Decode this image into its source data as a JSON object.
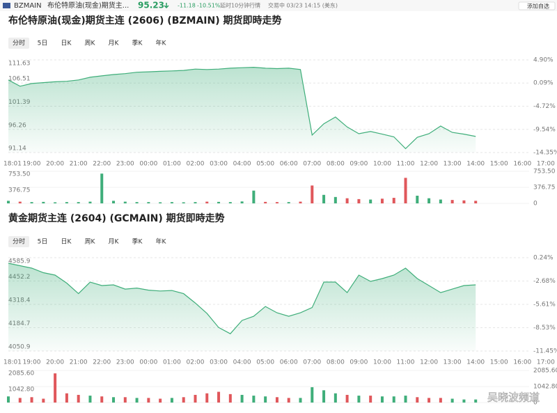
{
  "header": {
    "ticker": "BZMAIN",
    "name": "布伦特原油(现金)期货主...",
    "price": "95.23",
    "change": "-11.18",
    "change_pct": "-10.51%",
    "delay": "延时10分钟行情",
    "status": "交易中 03/23 14:15 (美东)",
    "button": "添加自选",
    "watermark": "吴晓波频道"
  },
  "chart_data": [
    {
      "type": "line",
      "title": "布伦特原油(现金)期货主连 (2606) (BZMAIN) 期货即時走势",
      "tabs": [
        "分时",
        "5日",
        "日K",
        "周K",
        "月K",
        "季K",
        "年K"
      ],
      "categories": [
        "18:01",
        null,
        "19:00",
        null,
        "20:00",
        null,
        "21:00",
        null,
        "22:00",
        null,
        "23:00",
        null,
        "00:00",
        null,
        "01:00",
        null,
        "02:00",
        null,
        "03:00",
        null,
        "04:00",
        null,
        "05:00",
        null,
        "06:00",
        null,
        "07:00",
        null,
        "08:00",
        null,
        "09:00",
        null,
        "10:00",
        null,
        "11:00",
        null,
        "12:00",
        null,
        "13:00",
        null,
        "14:00",
        null,
        "15:00",
        null,
        "16:00",
        null,
        "17:00"
      ],
      "values": [
        107.2,
        105.8,
        106.4,
        106.6,
        106.8,
        106.9,
        107.2,
        107.8,
        108.1,
        108.4,
        108.6,
        108.9,
        109.0,
        109.1,
        109.2,
        109.3,
        109.6,
        109.5,
        109.6,
        109.8,
        109.9,
        110.0,
        109.8,
        109.7,
        109.8,
        109.5,
        95.0,
        97.5,
        99.0,
        96.8,
        95.3,
        95.8,
        95.2,
        94.6,
        92.0,
        94.5,
        95.3,
        97.0,
        95.6,
        95.2,
        94.7,
        null,
        null,
        null,
        null,
        null,
        null
      ],
      "color": "#3fae7a",
      "ylim": [
        91.14,
        111.63
      ],
      "yticks": [
        91.14,
        96.26,
        101.39,
        106.51,
        111.63
      ],
      "y2lim": [
        -14.35,
        4.9
      ],
      "y2ticks": [
        {
          "value": -14.35,
          "label": "-14.35%"
        },
        {
          "value": -9.54,
          "label": "-9.54%"
        },
        {
          "value": -4.72,
          "label": "-4.72%"
        },
        {
          "value": 0.09,
          "label": "0.09%"
        },
        {
          "value": 4.9,
          "label": "4.90%"
        }
      ],
      "volume": {
        "values": [
          60,
          40,
          30,
          35,
          25,
          30,
          30,
          40,
          700,
          60,
          40,
          30,
          30,
          25,
          30,
          25,
          30,
          40,
          35,
          30,
          45,
          300,
          35,
          30,
          30,
          40,
          420,
          200,
          150,
          120,
          100,
          90,
          110,
          130,
          600,
          180,
          120,
          90,
          80,
          70,
          60,
          null,
          null,
          null,
          null,
          null,
          null
        ],
        "ylim": [
          0,
          753.5
        ],
        "yticks": [
          0,
          376.75,
          {
            "value": 753.5,
            "label": "753.50"
          }
        ],
        "up_color": "#3fae7a",
        "down_color": "#e0575b"
      }
    },
    {
      "type": "line",
      "title": "黄金期货主连 (2604) (GCMAIN) 期货即時走势",
      "tabs": [
        "分时",
        "5日",
        "日K",
        "周K",
        "月K",
        "季K",
        "年K"
      ],
      "categories": [
        "18:01",
        null,
        "19:00",
        null,
        "20:00",
        null,
        "21:00",
        null,
        "22:00",
        null,
        "23:00",
        null,
        "00:00",
        null,
        "01:00",
        null,
        "02:00",
        null,
        "03:00",
        null,
        "04:00",
        null,
        "05:00",
        null,
        "06:00",
        null,
        "07:00",
        null,
        "08:00",
        null,
        "09:00",
        null,
        "10:00",
        null,
        "11:00",
        null,
        "12:00",
        null,
        "13:00",
        null,
        "14:00",
        null,
        "15:00",
        null,
        "16:00",
        null,
        "17:00"
      ],
      "values": [
        4554,
        4540,
        4526,
        4500,
        4486,
        4440,
        4380,
        4446,
        4426,
        4430,
        4406,
        4412,
        4400,
        4395,
        4398,
        4380,
        4326,
        4266,
        4186,
        4150,
        4226,
        4250,
        4306,
        4270,
        4250,
        4270,
        4300,
        4446,
        4446,
        4386,
        4486,
        4450,
        4466,
        4486,
        4526,
        4466,
        4426,
        4386,
        4406,
        4426,
        4430,
        null,
        null,
        null,
        null,
        null,
        null
      ],
      "color": "#3fae7a",
      "ylim": [
        4050.9,
        4585.9
      ],
      "yticks": [
        4050.9,
        4184.7,
        4318.4,
        4452.2,
        4585.9
      ],
      "y2lim": [
        -11.45,
        0.24
      ],
      "y2ticks": [
        {
          "value": -11.45,
          "label": "-11.45%"
        },
        {
          "value": -8.53,
          "label": "-8.53%"
        },
        {
          "value": -5.61,
          "label": "-5.61%"
        },
        {
          "value": -2.68,
          "label": "-2.68%"
        },
        {
          "value": 0.24,
          "label": "0.24%"
        }
      ],
      "volume": {
        "values": [
          400,
          300,
          350,
          250,
          1900,
          600,
          500,
          450,
          400,
          350,
          350,
          300,
          300,
          250,
          300,
          350,
          500,
          600,
          700,
          550,
          500,
          450,
          400,
          350,
          300,
          300,
          1000,
          800,
          600,
          500,
          450,
          450,
          400,
          400,
          450,
          350,
          300,
          300,
          250,
          200,
          200,
          null,
          null,
          null,
          null,
          null,
          null
        ],
        "ylim": [
          0,
          2085.6
        ],
        "yticks": [
          0,
          {
            "value": 1042.8,
            "label": "1042.80"
          },
          {
            "value": 2085.6,
            "label": "2085.60"
          }
        ],
        "up_color": "#3fae7a",
        "down_color": "#e0575b"
      }
    }
  ]
}
